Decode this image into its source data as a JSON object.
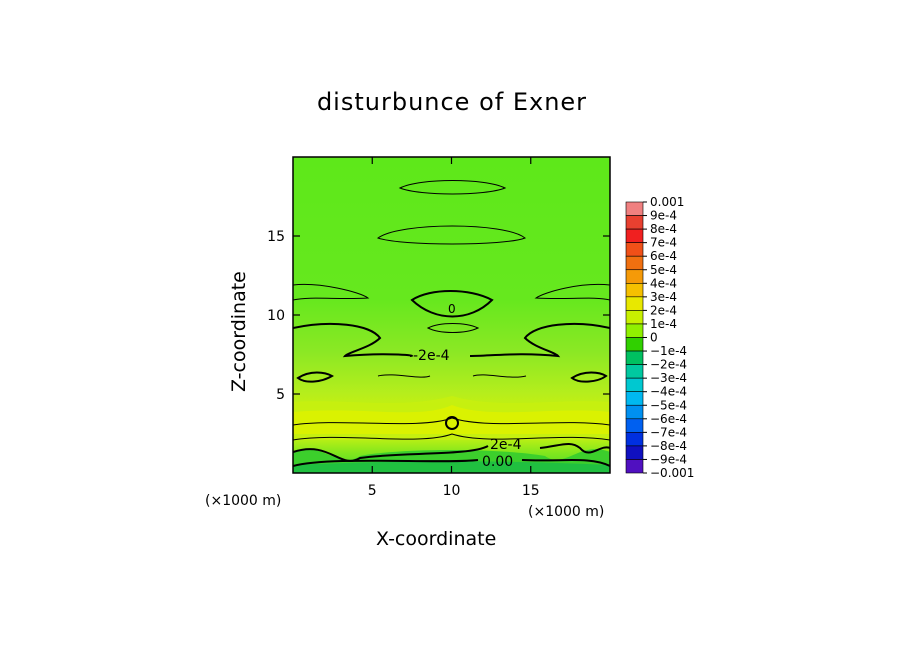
{
  "chart_data": {
    "type": "heatmap",
    "title": "disturbunce of Exner",
    "xlabel": "X-coordinate",
    "ylabel": "Z-coordinate",
    "x_unit": "(×1000 m)",
    "z_unit": "(×1000 m)",
    "xlim": [
      0,
      20
    ],
    "ylim": [
      0,
      20
    ],
    "x_ticks": [
      5,
      10,
      15
    ],
    "y_ticks": [
      5,
      10,
      15
    ],
    "colorbar": {
      "levels": [
        "0.001",
        "9e-4",
        "8e-4",
        "7e-4",
        "6e-4",
        "5e-4",
        "4e-4",
        "3e-4",
        "2e-4",
        "1e-4",
        "0",
        "-1e-4",
        "-2e-4",
        "-3e-4",
        "-4e-4",
        "-5e-4",
        "-6e-4",
        "-7e-4",
        "-8e-4",
        "-9e-4",
        "-0.001"
      ],
      "colors": [
        "#f08080",
        "#e84030",
        "#f02020",
        "#f05018",
        "#f07010",
        "#f59a08",
        "#f5c000",
        "#e8e800",
        "#c8f000",
        "#90f000",
        "#30d000",
        "#00c060",
        "#00c8a0",
        "#00c8d0",
        "#00b8f0",
        "#0090f0",
        "#0060f0",
        "#0030e0",
        "#1010c0",
        "#5010c0",
        "#7010b0"
      ]
    },
    "contour_labels": [
      "0",
      "-2e-4",
      "2e-4",
      "0.00"
    ],
    "field_description_values": {
      "near_surface_range": [
        -0.0001,
        0.0004
      ],
      "upper_range": [
        0.0,
        0.0002
      ]
    }
  }
}
